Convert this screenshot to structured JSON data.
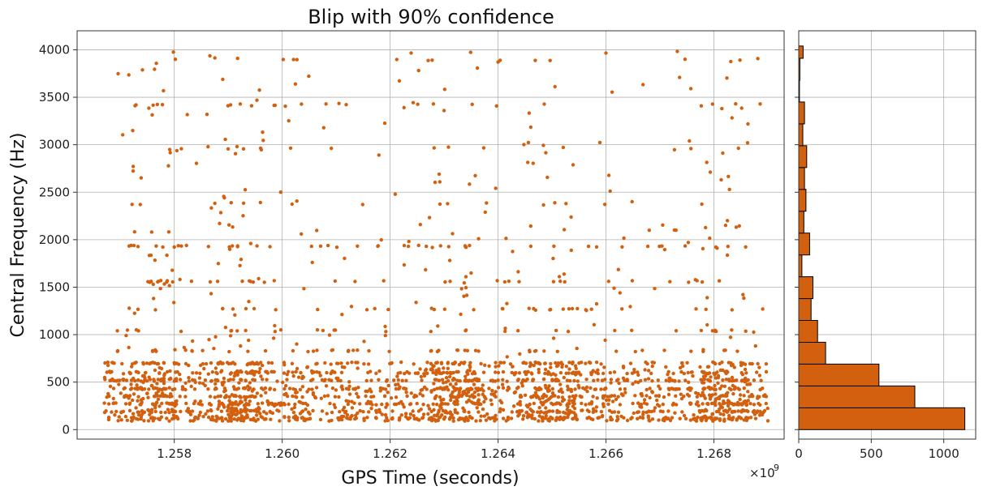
{
  "chart_data": [
    {
      "type": "scatter",
      "title": "Blip with 90% confidence",
      "xlabel": "GPS Time (seconds)",
      "ylabel": "Central Frequency (Hz)",
      "x_multiplier_label": "×10",
      "x_multiplier_exp": "9",
      "xlim": [
        1256.2,
        1269.3
      ],
      "ylim": [
        -100,
        4200
      ],
      "xticks": [
        1258,
        1260,
        1262,
        1264,
        1266,
        1268
      ],
      "xtick_labels": [
        "1.258",
        "1.260",
        "1.262",
        "1.264",
        "1.266",
        "1.268"
      ],
      "yticks": [
        0,
        500,
        1000,
        1500,
        2000,
        2500,
        3000,
        3500,
        4000
      ],
      "ytick_labels": [
        "0",
        "500",
        "1000",
        "1500",
        "2000",
        "2500",
        "3000",
        "3500",
        "4000"
      ],
      "grid": true,
      "point_color": "#d2600f",
      "series": [
        {
          "x_range": [
            1256.7,
            1269.0
          ],
          "dense_clusters_x": [
            1257.6,
            1259.2,
            1263.2,
            1265.0,
            1268.2
          ],
          "freq_levels_hz": [
            120,
            190,
            270,
            350,
            430,
            520,
            600,
            700,
            830,
            1040,
            1270,
            1560,
            1930,
            2380,
            2960,
            3420,
            3900
          ],
          "approx_point_count": 2600
        }
      ]
    },
    {
      "type": "bar",
      "orientation": "horizontal",
      "xlim": [
        0,
        1220
      ],
      "ylim": [
        -100,
        4200
      ],
      "xticks": [
        0,
        500,
        1000
      ],
      "xtick_labels": [
        "0",
        "500",
        "1000"
      ],
      "grid": true,
      "bar_color": "#d2600f",
      "bar_edge_color": "#000000",
      "bins_hz": [
        [
          0,
          230
        ],
        [
          230,
          460
        ],
        [
          460,
          690
        ],
        [
          690,
          920
        ],
        [
          920,
          1150
        ],
        [
          1150,
          1380
        ],
        [
          1380,
          1610
        ],
        [
          1610,
          1840
        ],
        [
          1840,
          2070
        ],
        [
          2070,
          2300
        ],
        [
          2300,
          2530
        ],
        [
          2530,
          2760
        ],
        [
          2760,
          2990
        ],
        [
          2990,
          3220
        ],
        [
          3220,
          3450
        ],
        [
          3450,
          3680
        ],
        [
          3680,
          3910
        ],
        [
          3910,
          4040
        ]
      ],
      "counts": [
        1145,
        800,
        553,
        185,
        130,
        85,
        98,
        22,
        75,
        35,
        50,
        40,
        55,
        28,
        40,
        5,
        8,
        30
      ]
    }
  ]
}
